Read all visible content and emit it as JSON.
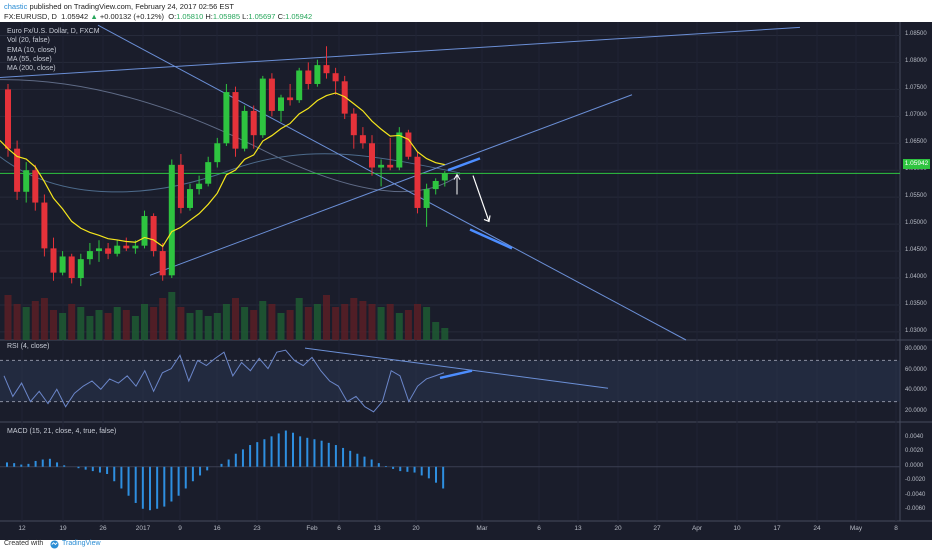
{
  "header": {
    "author": "chastic",
    "published_text": "published on TradingView.com, February 24, 2017 02:56 EST",
    "symbol": "FX:EURUSD, D",
    "last": "1.05942",
    "change": "+0.00132 (+0.12%)",
    "open_label": "O:",
    "open": "1.05810",
    "high_label": "H:",
    "high": "1.05985",
    "low_label": "L:",
    "low": "1.05697",
    "close_label": "C:",
    "close": "1.05942"
  },
  "legend": {
    "title": "Euro Fx/U.S. Dollar, D, FXCM",
    "vol": "Vol (20, false)",
    "ema": "EMA (10, close)",
    "ma55": "MA (55, close)",
    "ma200": "MA (200, close)",
    "rsi": "RSI (4, close)",
    "macd": "MACD (15, 21, close, 4, true, false)"
  },
  "price_axis": [
    "1.08500",
    "1.08000",
    "1.07500",
    "1.07000",
    "1.06500",
    "1.06000",
    "1.05500",
    "1.05000",
    "1.04500",
    "1.04000",
    "1.03500",
    "1.03000"
  ],
  "current_price_tag": "1.05942",
  "rsi_axis": [
    "80.0000",
    "60.0000",
    "40.0000",
    "20.0000"
  ],
  "macd_axis": [
    "0.0040",
    "0.0020",
    "0.0000",
    "-0.0020",
    "-0.0040",
    "-0.0060"
  ],
  "date_axis": [
    "12",
    "19",
    "26",
    "2017",
    "9",
    "16",
    "23",
    "Feb",
    "6",
    "13",
    "20",
    "Mar",
    "6",
    "13",
    "20",
    "27",
    "Apr",
    "10",
    "17",
    "24",
    "May",
    "8",
    "15"
  ],
  "footer": {
    "created": "Created with",
    "brand": "TradingView"
  },
  "colors": {
    "bg": "#1a1d2b",
    "up": "#2ec440",
    "down": "#e5323a",
    "ema": "#f5e61c",
    "trend": "#6b8fd6",
    "rsi": "#6b86c9",
    "macd": "#2e8fe0"
  },
  "chart_data": {
    "type": "candlestick",
    "symbol": "EURUSD",
    "timeframe": "D",
    "candles": [
      [
        1.075,
        1.076,
        1.0625,
        1.064
      ],
      [
        1.064,
        1.0655,
        1.0545,
        1.056
      ],
      [
        1.056,
        1.0615,
        1.054,
        1.06
      ],
      [
        1.06,
        1.061,
        1.0525,
        1.054
      ],
      [
        1.054,
        1.0555,
        1.044,
        1.0455
      ],
      [
        1.0455,
        1.0475,
        1.0395,
        1.041
      ],
      [
        1.041,
        1.045,
        1.0405,
        1.044
      ],
      [
        1.044,
        1.0445,
        1.039,
        1.04
      ],
      [
        1.04,
        1.0445,
        1.0385,
        1.0435
      ],
      [
        1.0435,
        1.0465,
        1.0425,
        1.045
      ],
      [
        1.045,
        1.047,
        1.043,
        1.0455
      ],
      [
        1.0455,
        1.0465,
        1.0435,
        1.0445
      ],
      [
        1.0445,
        1.047,
        1.044,
        1.046
      ],
      [
        1.046,
        1.0475,
        1.045,
        1.0455
      ],
      [
        1.0455,
        1.047,
        1.0445,
        1.046
      ],
      [
        1.046,
        1.0525,
        1.0455,
        1.0515
      ],
      [
        1.0515,
        1.052,
        1.044,
        1.045
      ],
      [
        1.045,
        1.0465,
        1.0395,
        1.0405
      ],
      [
        1.0405,
        1.062,
        1.04,
        1.061
      ],
      [
        1.061,
        1.063,
        1.052,
        1.053
      ],
      [
        1.053,
        1.0575,
        1.0525,
        1.0565
      ],
      [
        1.0565,
        1.059,
        1.0555,
        1.0575
      ],
      [
        1.0575,
        1.0625,
        1.057,
        1.0615
      ],
      [
        1.0615,
        1.066,
        1.0605,
        1.065
      ],
      [
        1.065,
        1.076,
        1.0645,
        1.0745
      ],
      [
        1.0745,
        1.0755,
        1.0625,
        1.064
      ],
      [
        1.064,
        1.072,
        1.0635,
        1.071
      ],
      [
        1.071,
        1.072,
        1.064,
        1.0665
      ],
      [
        1.0665,
        1.0775,
        1.066,
        1.077
      ],
      [
        1.077,
        1.078,
        1.07,
        1.071
      ],
      [
        1.071,
        1.074,
        1.069,
        1.0735
      ],
      [
        1.0735,
        1.076,
        1.072,
        1.073
      ],
      [
        1.073,
        1.079,
        1.0725,
        1.0785
      ],
      [
        1.0785,
        1.08,
        1.075,
        1.076
      ],
      [
        1.076,
        1.0805,
        1.0755,
        1.0795
      ],
      [
        1.0795,
        1.083,
        1.077,
        1.078
      ],
      [
        1.078,
        1.079,
        1.074,
        1.0765
      ],
      [
        1.0765,
        1.0775,
        1.0695,
        1.0705
      ],
      [
        1.0705,
        1.0715,
        1.064,
        1.0665
      ],
      [
        1.0665,
        1.068,
        1.064,
        1.065
      ],
      [
        1.065,
        1.0665,
        1.059,
        1.0605
      ],
      [
        1.0605,
        1.062,
        1.057,
        1.061
      ],
      [
        1.061,
        1.066,
        1.06,
        1.0605
      ],
      [
        1.0605,
        1.068,
        1.06,
        1.067
      ],
      [
        1.067,
        1.0675,
        1.062,
        1.0625
      ],
      [
        1.0625,
        1.0635,
        1.052,
        1.053
      ],
      [
        1.053,
        1.0575,
        1.0495,
        1.0565
      ],
      [
        1.0565,
        1.0585,
        1.0555,
        1.058
      ],
      [
        1.0581,
        1.05985,
        1.05697,
        1.05942
      ]
    ],
    "indicators": [
      "Vol (20, false)",
      "EMA (10, close)",
      "MA (55, close)",
      "MA (200, close)",
      "RSI (4, close)",
      "MACD (15, 21, close, 4, true, false)"
    ],
    "macd_histogram": [
      0.0006,
      0.0005,
      0.0003,
      0.0004,
      0.0008,
      0.001,
      0.0011,
      0.0006,
      0.0002,
      0.0,
      -0.0002,
      -0.0004,
      -0.0006,
      -0.0008,
      -0.001,
      -0.002,
      -0.003,
      -0.004,
      -0.005,
      -0.0058,
      -0.006,
      -0.0058,
      -0.0055,
      -0.0048,
      -0.004,
      -0.003,
      -0.002,
      -0.0012,
      -0.0005,
      0.0,
      0.0004,
      0.001,
      0.0018,
      0.0024,
      0.003,
      0.0034,
      0.0038,
      0.0042,
      0.0046,
      0.005,
      0.0047,
      0.0042,
      0.004,
      0.0038,
      0.0036,
      0.0033,
      0.003,
      0.0026,
      0.0022,
      0.0018,
      0.0014,
      0.001,
      0.0005,
      0.0001,
      -0.0003,
      -0.0006,
      -0.0007,
      -0.0008,
      -0.0012,
      -0.0016,
      -0.0022,
      -0.003
    ]
  }
}
